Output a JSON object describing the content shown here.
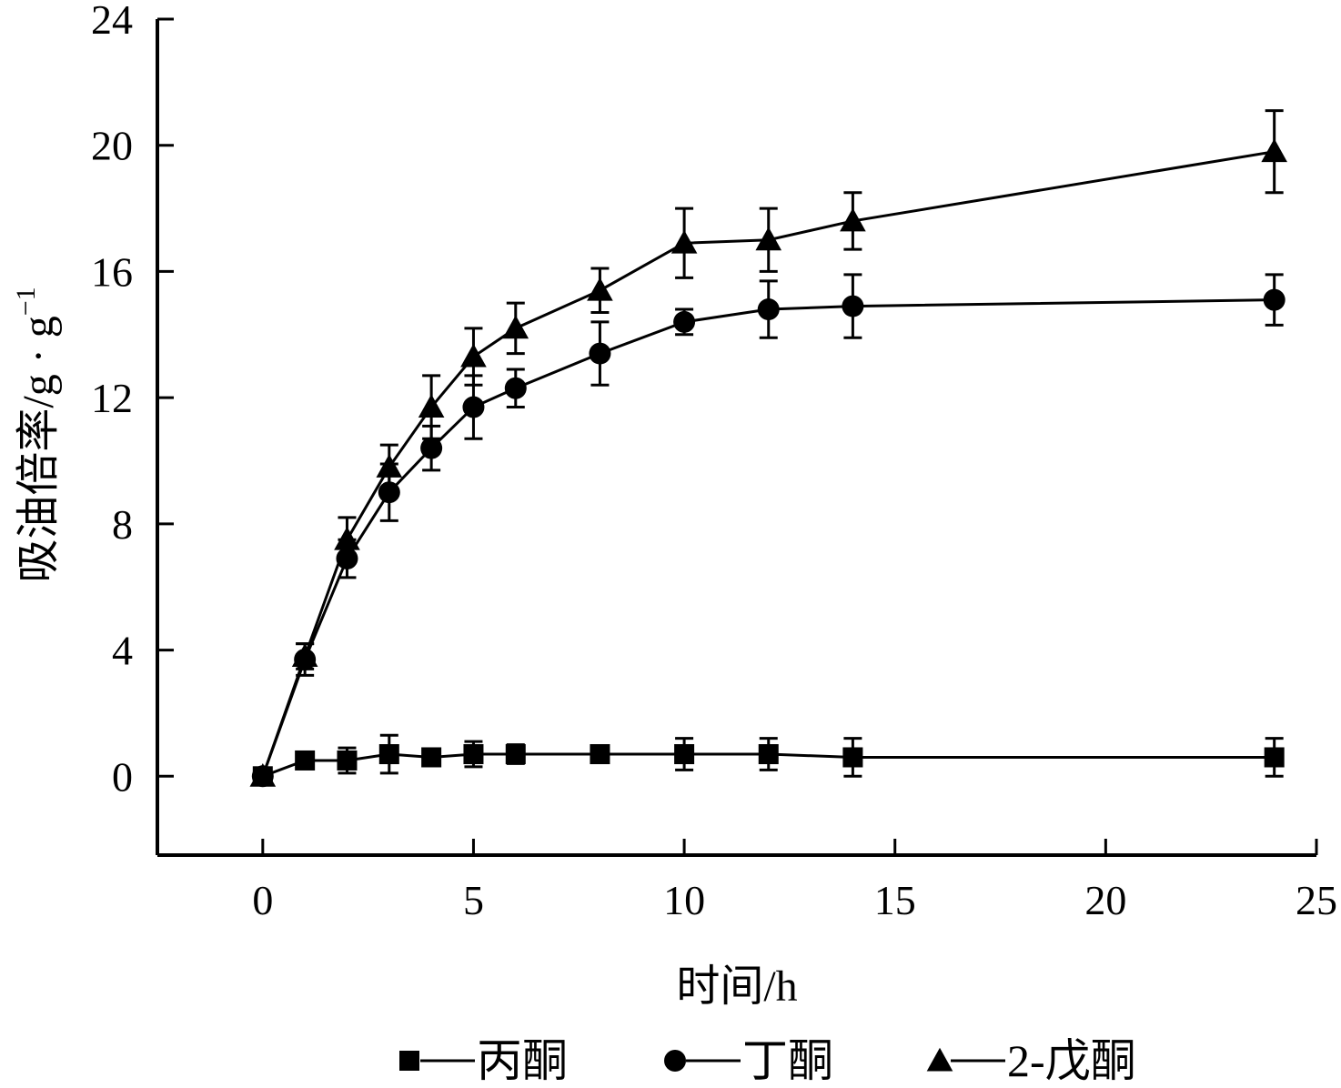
{
  "chart_data": {
    "type": "line",
    "xlabel": "时间/h",
    "ylabel_main": "吸油倍率/g · g",
    "ylabel_sup": "−1",
    "xlim": [
      -2.5,
      25
    ],
    "ylim": [
      -2.5,
      24
    ],
    "xticks": [
      0,
      5,
      10,
      15,
      20,
      25
    ],
    "yticks": [
      0,
      4,
      8,
      12,
      16,
      20,
      24
    ],
    "grid": false,
    "legend_position": "bottom",
    "x": [
      0,
      1,
      2,
      3,
      4,
      5,
      6,
      8,
      10,
      12,
      14,
      24
    ],
    "series": [
      {
        "name": "丙酮",
        "marker": "square",
        "values": [
          0,
          0.5,
          0.5,
          0.7,
          0.6,
          0.7,
          0.7,
          0.7,
          0.7,
          0.7,
          0.6,
          0.6
        ],
        "errors": [
          0,
          0.1,
          0.4,
          0.6,
          0.2,
          0.4,
          0.3,
          0.1,
          0.5,
          0.5,
          0.6,
          0.6
        ]
      },
      {
        "name": "丁酮",
        "marker": "circle",
        "values": [
          0,
          3.7,
          6.9,
          9.0,
          10.4,
          11.7,
          12.3,
          13.4,
          14.4,
          14.8,
          14.9,
          15.1
        ],
        "errors": [
          0,
          0.5,
          0.6,
          0.9,
          0.7,
          1.0,
          0.6,
          1.0,
          0.4,
          0.9,
          1.0,
          0.8
        ]
      },
      {
        "name": "2-戊酮",
        "marker": "triangle",
        "values": [
          0,
          3.8,
          7.5,
          9.8,
          11.7,
          13.3,
          14.2,
          15.4,
          16.9,
          17.0,
          17.6,
          19.8
        ],
        "errors": [
          0,
          0.4,
          0.7,
          0.7,
          1.0,
          0.9,
          0.8,
          0.7,
          1.1,
          1.0,
          0.9,
          1.3
        ]
      }
    ]
  }
}
